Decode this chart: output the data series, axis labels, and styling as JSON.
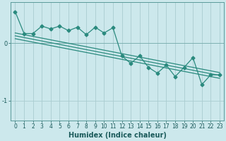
{
  "title": "",
  "xlabel": "Humidex (Indice chaleur)",
  "ylabel": "",
  "bg_color": "#cce8ec",
  "grid_color": "#aaccd0",
  "line_color": "#2a8a7e",
  "x": [
    0,
    1,
    2,
    3,
    4,
    5,
    6,
    7,
    8,
    9,
    10,
    11,
    12,
    13,
    14,
    15,
    16,
    17,
    18,
    19,
    20,
    21,
    22,
    23
  ],
  "y_main": [
    0.55,
    0.17,
    0.17,
    0.3,
    0.25,
    0.3,
    0.22,
    0.28,
    0.15,
    0.28,
    0.18,
    0.27,
    -0.22,
    -0.35,
    -0.22,
    -0.42,
    -0.52,
    -0.38,
    -0.58,
    -0.42,
    -0.25,
    -0.72,
    -0.55,
    -0.55
  ],
  "y_reg1": [
    0.18,
    0.15,
    0.12,
    0.09,
    0.06,
    0.03,
    0.0,
    -0.03,
    -0.06,
    -0.09,
    -0.12,
    -0.15,
    -0.18,
    -0.21,
    -0.24,
    -0.27,
    -0.3,
    -0.33,
    -0.36,
    -0.39,
    -0.42,
    -0.45,
    -0.48,
    -0.51
  ],
  "y_reg2": [
    0.13,
    0.1,
    0.07,
    0.04,
    0.01,
    -0.02,
    -0.05,
    -0.08,
    -0.11,
    -0.14,
    -0.17,
    -0.2,
    -0.23,
    -0.26,
    -0.29,
    -0.32,
    -0.35,
    -0.38,
    -0.41,
    -0.44,
    -0.47,
    -0.5,
    -0.53,
    -0.56
  ],
  "y_reg3": [
    0.08,
    0.05,
    0.02,
    -0.01,
    -0.04,
    -0.07,
    -0.1,
    -0.13,
    -0.16,
    -0.19,
    -0.22,
    -0.25,
    -0.28,
    -0.31,
    -0.34,
    -0.37,
    -0.4,
    -0.43,
    -0.46,
    -0.49,
    -0.52,
    -0.55,
    -0.58,
    -0.61
  ],
  "ylim": [
    -1.35,
    0.72
  ],
  "xlim": [
    -0.5,
    23.5
  ],
  "yticks": [
    0,
    -1
  ],
  "xticks": [
    0,
    1,
    2,
    3,
    4,
    5,
    6,
    7,
    8,
    9,
    10,
    11,
    12,
    13,
    14,
    15,
    16,
    17,
    18,
    19,
    20,
    21,
    22,
    23
  ],
  "tick_fontsize": 5.5,
  "label_fontsize": 7,
  "marker_size": 2.5
}
